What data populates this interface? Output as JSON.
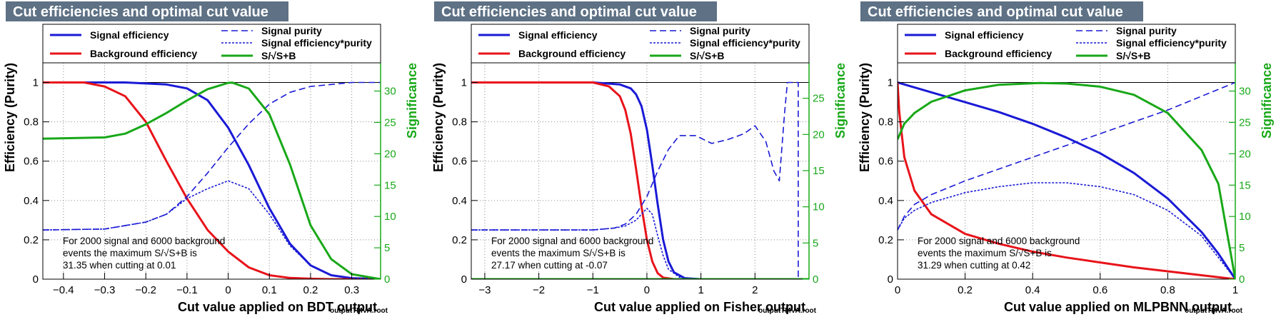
{
  "colors": {
    "title_bg": "#5e7185",
    "title_fg": "#ffffff",
    "signal_eff": "#1a1ad6",
    "background_eff": "#e8131a",
    "significance": "#18a818",
    "frame": "#000000",
    "grid": "#8a8a8a"
  },
  "legend": {
    "signal_efficiency": "Signal efficiency",
    "background_efficiency": "Background efficiency",
    "signal_purity": "Signal purity",
    "signal_eff_purity": "Signal efficiency*purity",
    "significance": "S/√S+B"
  },
  "chart_data": [
    {
      "type": "line",
      "title": "Cut efficiencies and optimal cut value",
      "xlabel": "Cut value applied on BDT output",
      "ylabel": "Efficiency (Purity)",
      "y2label": "Significance",
      "footer": "outputTMVA.root",
      "xlim": [
        -0.45,
        0.37
      ],
      "ylim": [
        0,
        1.1
      ],
      "y2lim": [
        0,
        34.5
      ],
      "xticks": [
        -0.4,
        -0.3,
        -0.2,
        -0.1,
        0,
        0.1,
        0.2,
        0.3
      ],
      "xticklabels": [
        "−0.4",
        "−0.3",
        "−0.2",
        "−0.1",
        "0",
        "0.1",
        "0.2",
        "0.3"
      ],
      "yticks": [
        0,
        0.2,
        0.4,
        0.6,
        0.8,
        1
      ],
      "yticklabels": [
        "0",
        "0.2",
        "0.4",
        "0.6",
        "0.8",
        "1"
      ],
      "y2ticks": [
        0,
        5,
        10,
        15,
        20,
        25,
        30
      ],
      "y2ticklabels": [
        "0",
        "5",
        "10",
        "15",
        "20",
        "25",
        "30"
      ],
      "grid": true,
      "legend_position": "top",
      "annotation": [
        "For 2000 signal and 6000 background",
        "events the maximum S/√S+B is",
        "31.35 when cutting at  0.01"
      ],
      "series": [
        {
          "name": "Signal efficiency",
          "axis": "left",
          "style": "solid",
          "x": [
            -0.45,
            -0.35,
            -0.25,
            -0.15,
            -0.1,
            -0.05,
            0,
            0.05,
            0.1,
            0.15,
            0.2,
            0.25,
            0.3,
            0.37
          ],
          "y": [
            1.0,
            1.0,
            1.0,
            0.99,
            0.97,
            0.91,
            0.77,
            0.58,
            0.36,
            0.18,
            0.07,
            0.02,
            0.005,
            0.0
          ]
        },
        {
          "name": "Background efficiency",
          "axis": "left",
          "style": "solid",
          "x": [
            -0.45,
            -0.35,
            -0.3,
            -0.25,
            -0.2,
            -0.15,
            -0.1,
            -0.05,
            0,
            0.05,
            0.1,
            0.15,
            0.2,
            0.25,
            0.37
          ],
          "y": [
            1.0,
            1.0,
            0.98,
            0.93,
            0.8,
            0.6,
            0.41,
            0.25,
            0.14,
            0.06,
            0.02,
            0.006,
            0.002,
            0.0,
            0.0
          ]
        },
        {
          "name": "Signal purity",
          "axis": "left",
          "style": "dashed",
          "x": [
            -0.45,
            -0.3,
            -0.2,
            -0.15,
            -0.1,
            -0.05,
            0,
            0.05,
            0.1,
            0.15,
            0.2,
            0.25,
            0.3,
            0.37
          ],
          "y": [
            0.25,
            0.255,
            0.29,
            0.33,
            0.42,
            0.54,
            0.67,
            0.79,
            0.89,
            0.95,
            0.98,
            0.99,
            1.0,
            1.0
          ]
        },
        {
          "name": "Signal efficiency*purity",
          "axis": "left",
          "style": "dotted",
          "x": [
            -0.45,
            -0.3,
            -0.2,
            -0.15,
            -0.1,
            -0.05,
            0,
            0.05,
            0.1,
            0.15,
            0.2,
            0.25,
            0.3,
            0.37
          ],
          "y": [
            0.25,
            0.255,
            0.29,
            0.33,
            0.41,
            0.46,
            0.5,
            0.46,
            0.33,
            0.17,
            0.07,
            0.02,
            0.005,
            0.0
          ]
        },
        {
          "name": "S/√S+B",
          "axis": "right",
          "style": "solid",
          "x": [
            -0.45,
            -0.3,
            -0.25,
            -0.2,
            -0.15,
            -0.1,
            -0.05,
            0,
            0.01,
            0.05,
            0.1,
            0.15,
            0.2,
            0.25,
            0.3,
            0.37
          ],
          "y": [
            22.4,
            22.6,
            23.2,
            24.7,
            26.5,
            28.5,
            30.3,
            31.3,
            31.35,
            30.4,
            26.3,
            18.3,
            8.6,
            3.2,
            0.8,
            0.0
          ]
        }
      ]
    },
    {
      "type": "line",
      "title": "Cut efficiencies and optimal cut value",
      "xlabel": "Cut value applied on Fisher output",
      "ylabel": "Efficiency (Purity)",
      "y2label": "Significance",
      "footer": "outputTMVA.root",
      "xlim": [
        -3.25,
        3.0
      ],
      "ylim": [
        0,
        1.1
      ],
      "y2lim": [
        0,
        29.9
      ],
      "xticks": [
        -3,
        -2,
        -1,
        0,
        1,
        2
      ],
      "xticklabels": [
        "−3",
        "−2",
        "−1",
        "0",
        "1",
        "2"
      ],
      "yticks": [
        0,
        0.2,
        0.4,
        0.6,
        0.8,
        1
      ],
      "yticklabels": [
        "0",
        "0.2",
        "0.4",
        "0.6",
        "0.8",
        "1"
      ],
      "y2ticks": [
        0,
        5,
        10,
        15,
        20,
        25
      ],
      "y2ticklabels": [
        "0",
        "5",
        "10",
        "15",
        "20",
        "25"
      ],
      "grid": true,
      "legend_position": "top",
      "annotation": [
        "For 2000 signal and 6000 background",
        "events the maximum S/√S+B is",
        "27.17 when cutting at -0.07"
      ],
      "series": [
        {
          "name": "Signal efficiency",
          "axis": "left",
          "style": "solid",
          "x": [
            -3.25,
            -1.0,
            -0.5,
            -0.3,
            -0.2,
            -0.1,
            0.0,
            0.1,
            0.2,
            0.3,
            0.4,
            0.5,
            0.7,
            1.0,
            3.0
          ],
          "y": [
            1.0,
            1.0,
            0.99,
            0.97,
            0.94,
            0.88,
            0.76,
            0.58,
            0.38,
            0.2,
            0.09,
            0.035,
            0.005,
            0.0,
            0.0
          ]
        },
        {
          "name": "Background efficiency",
          "axis": "left",
          "style": "solid",
          "x": [
            -3.25,
            -1.0,
            -0.7,
            -0.5,
            -0.4,
            -0.3,
            -0.2,
            -0.1,
            0.0,
            0.1,
            0.2,
            0.3,
            0.5,
            3.0
          ],
          "y": [
            1.0,
            1.0,
            0.98,
            0.93,
            0.86,
            0.74,
            0.56,
            0.37,
            0.2,
            0.09,
            0.03,
            0.008,
            0.0,
            0.0
          ]
        },
        {
          "name": "Signal purity",
          "axis": "left",
          "style": "dashed",
          "x": [
            -3.25,
            -1.0,
            -0.6,
            -0.4,
            -0.2,
            0.0,
            0.2,
            0.4,
            0.6,
            0.9,
            1.2,
            1.5,
            1.8,
            2.0,
            2.2,
            2.35,
            2.45,
            2.55,
            2.6,
            2.8,
            2.8
          ],
          "y": [
            0.25,
            0.25,
            0.26,
            0.28,
            0.33,
            0.42,
            0.55,
            0.66,
            0.73,
            0.73,
            0.69,
            0.71,
            0.74,
            0.78,
            0.7,
            0.55,
            0.5,
            0.85,
            1.0,
            1.0,
            0.0
          ]
        },
        {
          "name": "Signal efficiency*purity",
          "axis": "left",
          "style": "dotted",
          "x": [
            -3.25,
            -1.0,
            -0.6,
            -0.4,
            -0.2,
            0.0,
            0.1,
            0.2,
            0.3,
            0.4,
            0.6,
            1.0,
            3.0
          ],
          "y": [
            0.25,
            0.25,
            0.26,
            0.27,
            0.3,
            0.36,
            0.33,
            0.22,
            0.12,
            0.05,
            0.01,
            0.0,
            0.0
          ]
        },
        {
          "name": "S/√S+B",
          "axis": "right",
          "style": "solid",
          "x": [
            -3.25,
            3.0
          ],
          "y": [
            0.0,
            0.0
          ]
        }
      ]
    },
    {
      "type": "line",
      "title": "Cut efficiencies and optimal cut value",
      "xlabel": "Cut value applied on MLPBNN output",
      "ylabel": "Efficiency (Purity)",
      "y2label": "Significance",
      "footer": "outputTMVA.root",
      "xlim": [
        0,
        1
      ],
      "ylim": [
        0,
        1.1
      ],
      "y2lim": [
        0,
        34.5
      ],
      "xticks": [
        0,
        0.2,
        0.4,
        0.6,
        0.8,
        1
      ],
      "xticklabels": [
        "0",
        "0.2",
        "0.4",
        "0.6",
        "0.8",
        "1"
      ],
      "yticks": [
        0,
        0.2,
        0.4,
        0.6,
        0.8,
        1
      ],
      "yticklabels": [
        "0",
        "0.2",
        "0.4",
        "0.6",
        "0.8",
        "1"
      ],
      "y2ticks": [
        0,
        5,
        10,
        15,
        20,
        25,
        30
      ],
      "y2ticklabels": [
        "0",
        "5",
        "10",
        "15",
        "20",
        "25",
        "30"
      ],
      "grid": true,
      "legend_position": "top",
      "annotation": [
        "For 2000 signal and 6000 background",
        "events the maximum S/√S+B is",
        "31.29 when cutting at  0.42"
      ],
      "series": [
        {
          "name": "Signal efficiency",
          "axis": "left",
          "style": "solid",
          "x": [
            0,
            0.1,
            0.2,
            0.3,
            0.4,
            0.5,
            0.6,
            0.7,
            0.8,
            0.9,
            0.95,
            1.0
          ],
          "y": [
            1.0,
            0.95,
            0.9,
            0.85,
            0.79,
            0.72,
            0.64,
            0.54,
            0.41,
            0.24,
            0.13,
            0.0
          ]
        },
        {
          "name": "Background efficiency",
          "axis": "left",
          "style": "solid",
          "x": [
            0,
            0.005,
            0.02,
            0.05,
            0.1,
            0.2,
            0.3,
            0.4,
            0.5,
            0.6,
            0.7,
            0.8,
            0.9,
            1.0
          ],
          "y": [
            1.0,
            0.85,
            0.62,
            0.45,
            0.33,
            0.23,
            0.18,
            0.14,
            0.11,
            0.085,
            0.06,
            0.04,
            0.02,
            0.0
          ]
        },
        {
          "name": "Signal purity",
          "axis": "left",
          "style": "dashed",
          "x": [
            0,
            0.02,
            0.05,
            0.1,
            0.2,
            0.3,
            0.4,
            0.5,
            0.6,
            0.7,
            0.8,
            0.9,
            1.0
          ],
          "y": [
            0.25,
            0.32,
            0.38,
            0.43,
            0.5,
            0.56,
            0.62,
            0.68,
            0.74,
            0.8,
            0.86,
            0.93,
            1.0
          ]
        },
        {
          "name": "Signal efficiency*purity",
          "axis": "left",
          "style": "dotted",
          "x": [
            0,
            0.02,
            0.05,
            0.1,
            0.2,
            0.3,
            0.4,
            0.5,
            0.6,
            0.7,
            0.8,
            0.9,
            1.0
          ],
          "y": [
            0.25,
            0.31,
            0.35,
            0.39,
            0.44,
            0.47,
            0.49,
            0.49,
            0.47,
            0.43,
            0.35,
            0.22,
            0.0
          ]
        },
        {
          "name": "S/√S+B",
          "axis": "right",
          "style": "solid",
          "x": [
            0,
            0.02,
            0.05,
            0.1,
            0.2,
            0.3,
            0.42,
            0.5,
            0.6,
            0.7,
            0.8,
            0.9,
            0.95,
            1.0
          ],
          "y": [
            22.3,
            24.8,
            26.5,
            28.3,
            30.1,
            31.0,
            31.29,
            31.2,
            30.7,
            29.4,
            26.5,
            20.6,
            15.2,
            0.0
          ]
        }
      ]
    }
  ]
}
